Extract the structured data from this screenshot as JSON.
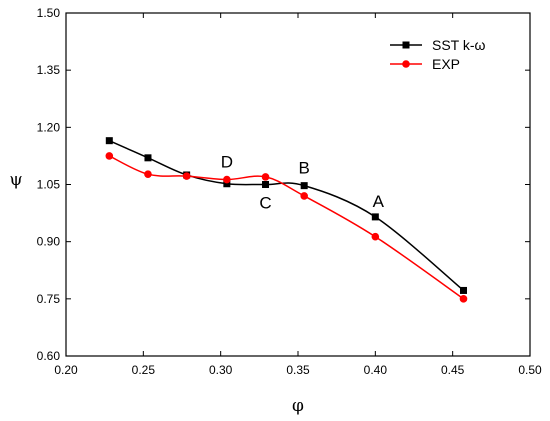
{
  "chart_data": {
    "type": "line",
    "xlabel": "φ",
    "ylabel": "ψ",
    "xlim": [
      0.2,
      0.5
    ],
    "ylim": [
      0.6,
      1.5
    ],
    "xticks": [
      "0.20",
      "0.25",
      "0.30",
      "0.35",
      "0.40",
      "0.45",
      "0.50"
    ],
    "yticks": [
      "0.60",
      "0.75",
      "0.90",
      "1.05",
      "1.20",
      "1.35",
      "1.50"
    ],
    "legend_position": "top-right",
    "series": [
      {
        "name": "SST k-ω",
        "color": "#000000",
        "marker": "square",
        "x": [
          0.228,
          0.253,
          0.278,
          0.304,
          0.329,
          0.354,
          0.4,
          0.457
        ],
        "y": [
          1.165,
          1.12,
          1.075,
          1.052,
          1.05,
          1.047,
          0.965,
          0.772
        ]
      },
      {
        "name": "EXP",
        "color": "#ff0000",
        "marker": "circle",
        "x": [
          0.228,
          0.253,
          0.278,
          0.304,
          0.329,
          0.354,
          0.4,
          0.457
        ],
        "y": [
          1.125,
          1.077,
          1.072,
          1.063,
          1.07,
          1.02,
          0.913,
          0.75
        ]
      }
    ],
    "annotations": [
      {
        "text": "D",
        "x": 0.304,
        "y": 1.063
      },
      {
        "text": "C",
        "x": 0.329,
        "y": 1.05
      },
      {
        "text": "B",
        "x": 0.354,
        "y": 1.047
      },
      {
        "text": "A",
        "x": 0.4,
        "y": 0.965
      }
    ]
  }
}
